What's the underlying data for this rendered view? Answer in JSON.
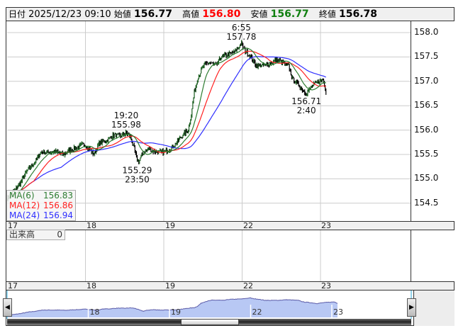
{
  "header": {
    "date_label": "日付",
    "datetime": "2025/12/23 09:10",
    "open_label": "始値",
    "open": "156.77",
    "high_label": "高値",
    "high": "156.80",
    "low_label": "安値",
    "low": "156.77",
    "close_label": "終値",
    "close": "156.78"
  },
  "colors": {
    "high": "#ff0000",
    "low": "#118011",
    "ma6": "#2e7d32",
    "ma12": "#ff2020",
    "ma24": "#3030ff",
    "candle": "#000000",
    "nav_fill": "#b8c8f4",
    "nav_line": "#5c5ca8"
  },
  "ma_legend": [
    {
      "label": "MA(6)",
      "value": "156.83"
    },
    {
      "label": "MA(12)",
      "value": "156.86"
    },
    {
      "label": "MA(24)",
      "value": "156.94"
    }
  ],
  "volume": {
    "label": "出来高",
    "value": "0"
  },
  "date_axis": [
    "17",
    "18",
    "19",
    "22",
    "23"
  ],
  "chart_data": {
    "type": "candlestick",
    "x_unit": "trading session (0=17, 1=18, 2=19, 3=22, 4=23)",
    "ylim": [
      154.15,
      158.25
    ],
    "y_ticks": [
      "158.0",
      "157.5",
      "157.0",
      "156.5",
      "156.0",
      "155.5",
      "155.0",
      "154.5"
    ],
    "grid": true,
    "series_close": [
      [
        0,
        154.6
      ],
      [
        0.09,
        154.75
      ],
      [
        0.18,
        154.95
      ],
      [
        0.27,
        155.2
      ],
      [
        0.36,
        155.35
      ],
      [
        0.43,
        155.55
      ],
      [
        0.54,
        155.55
      ],
      [
        0.63,
        155.55
      ],
      [
        0.72,
        155.5
      ],
      [
        0.81,
        155.6
      ],
      [
        0.9,
        155.65
      ],
      [
        0.98,
        155.72
      ],
      [
        1.04,
        155.62
      ],
      [
        1.11,
        155.5
      ],
      [
        1.18,
        155.75
      ],
      [
        1.27,
        155.78
      ],
      [
        1.36,
        155.9
      ],
      [
        1.45,
        155.88
      ],
      [
        1.52,
        155.95
      ],
      [
        1.58,
        155.85
      ],
      [
        1.65,
        155.45
      ],
      [
        1.68,
        155.35
      ],
      [
        1.74,
        155.55
      ],
      [
        1.81,
        155.62
      ],
      [
        1.9,
        155.55
      ],
      [
        2.0,
        155.55
      ],
      [
        2.08,
        155.62
      ],
      [
        2.17,
        155.75
      ],
      [
        2.24,
        155.9
      ],
      [
        2.31,
        156.0
      ],
      [
        2.35,
        156.3
      ],
      [
        2.39,
        156.8
      ],
      [
        2.44,
        157.1
      ],
      [
        2.52,
        157.35
      ],
      [
        2.59,
        157.38
      ],
      [
        2.67,
        157.32
      ],
      [
        2.73,
        157.5
      ],
      [
        2.82,
        157.55
      ],
      [
        2.9,
        157.6
      ],
      [
        2.99,
        157.78
      ],
      [
        3.03,
        157.65
      ],
      [
        3.09,
        157.55
      ],
      [
        3.17,
        157.35
      ],
      [
        3.24,
        157.32
      ],
      [
        3.35,
        157.35
      ],
      [
        3.44,
        157.45
      ],
      [
        3.53,
        157.38
      ],
      [
        3.6,
        157.3
      ],
      [
        3.64,
        157.05
      ],
      [
        3.71,
        156.95
      ],
      [
        3.78,
        156.82
      ],
      [
        3.82,
        156.75
      ],
      [
        3.89,
        156.9
      ],
      [
        3.98,
        157.0
      ],
      [
        4.03,
        157.05
      ],
      [
        4.07,
        156.8
      ]
    ],
    "annotations": [
      {
        "time": "19:20",
        "price": "155.98",
        "pos": "above",
        "at": [
          1.52,
          155.98
        ]
      },
      {
        "time": "23:50",
        "price": "155.29",
        "pos": "below",
        "at": [
          1.66,
          155.29
        ]
      },
      {
        "time": "6:55",
        "price": "157.78",
        "pos": "above",
        "at": [
          2.99,
          157.78
        ]
      },
      {
        "time": "2:40",
        "price": "156.71",
        "pos": "below",
        "at": [
          3.82,
          156.71
        ]
      }
    ],
    "nav_labels": [
      "18",
      "19",
      "22",
      "23"
    ]
  },
  "scroll": {
    "left_icon": "arrow-left-icon",
    "right_icon": "arrow-right-icon"
  }
}
